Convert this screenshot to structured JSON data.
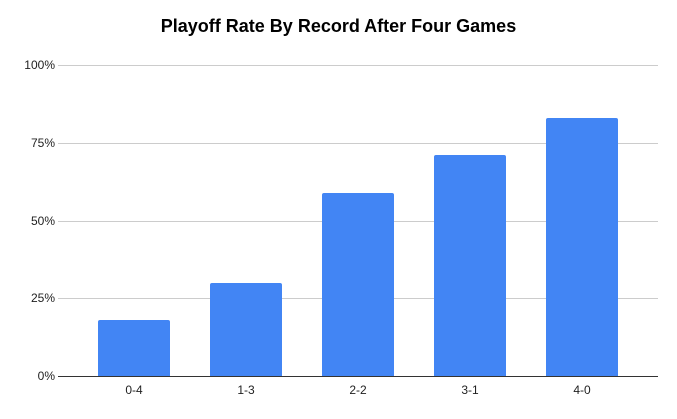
{
  "chart_data": {
    "type": "bar",
    "title": "Playoff Rate By Record After Four Games",
    "categories": [
      "0-4",
      "1-3",
      "2-2",
      "3-1",
      "4-0"
    ],
    "values": [
      18,
      30,
      59,
      71,
      83
    ],
    "xlabel": "",
    "ylabel": "",
    "ylim": [
      0,
      100
    ],
    "yticks": [
      {
        "label": "0%",
        "value": 0
      },
      {
        "label": "25%",
        "value": 25
      },
      {
        "label": "50%",
        "value": 50
      },
      {
        "label": "75%",
        "value": 75
      },
      {
        "label": "100%",
        "value": 100
      }
    ],
    "grid": true,
    "legend": "none",
    "colors": {
      "bar": "#4285f4",
      "gridline": "#cccccc",
      "axis_line": "#333333",
      "tick_text": "#1f1f1f",
      "title_text": "#000000",
      "background": "#ffffff"
    }
  }
}
